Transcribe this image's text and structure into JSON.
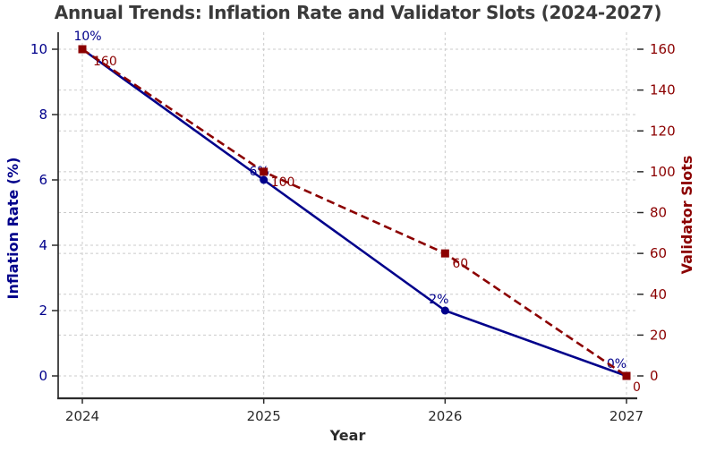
{
  "chart_data": {
    "type": "line",
    "title": "Annual Trends: Inflation Rate and Validator Slots (2024-2027)",
    "xlabel": "Year",
    "categories": [
      "2024",
      "2025",
      "2026",
      "2027"
    ],
    "grid": "dashed light-gray, horizontal for both y-axes plus vertical per year",
    "legend": "none",
    "series": [
      {
        "name": "Inflation Rate (%)",
        "axis": "left",
        "color": "#00008B",
        "line_style": "solid",
        "marker": "circle",
        "values": [
          10,
          6,
          2,
          0
        ],
        "point_labels": [
          "10%",
          "6%",
          "2%",
          "0%"
        ]
      },
      {
        "name": "Validator Slots",
        "axis": "right",
        "color": "#8B0000",
        "line_style": "dashed",
        "marker": "square",
        "values": [
          160,
          100,
          60,
          0
        ],
        "point_labels": [
          "160",
          "100",
          "60",
          "0"
        ]
      }
    ],
    "left_axis": {
      "label": "Inflation Rate (%)",
      "color": "#00008B",
      "ticks": [
        0,
        2,
        4,
        6,
        8,
        10
      ],
      "range": [
        0,
        10
      ]
    },
    "right_axis": {
      "label": "Validator Slots",
      "color": "#8B0000",
      "ticks": [
        0,
        20,
        40,
        60,
        80,
        100,
        120,
        140,
        160
      ],
      "range": [
        0,
        160
      ]
    },
    "x_axis": {
      "label": "Year",
      "tick_labels": [
        "2024",
        "2025",
        "2026",
        "2027"
      ],
      "color": "#2b2b2b"
    }
  }
}
